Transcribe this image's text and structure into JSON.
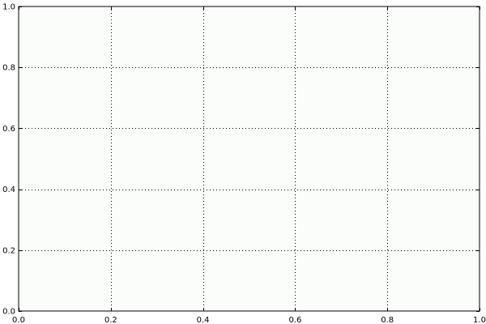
{
  "chart_data": {
    "type": "line",
    "title": "",
    "xlabel": "",
    "ylabel": "",
    "xlim": [
      0.0,
      1.0
    ],
    "ylim": [
      0.0,
      1.0
    ],
    "x_ticks": [
      "0.0",
      "0.2",
      "0.4",
      "0.6",
      "0.8",
      "1.0"
    ],
    "y_ticks": [
      "0.0",
      "0.2",
      "0.4",
      "0.6",
      "0.8",
      "1.0"
    ],
    "grid": true,
    "grid_style": "dotted",
    "series": [],
    "colors": {
      "plot_background": "#fbfdfb",
      "figure_background": "#ffffff",
      "axes": "#000000",
      "grid": "#000000"
    }
  }
}
